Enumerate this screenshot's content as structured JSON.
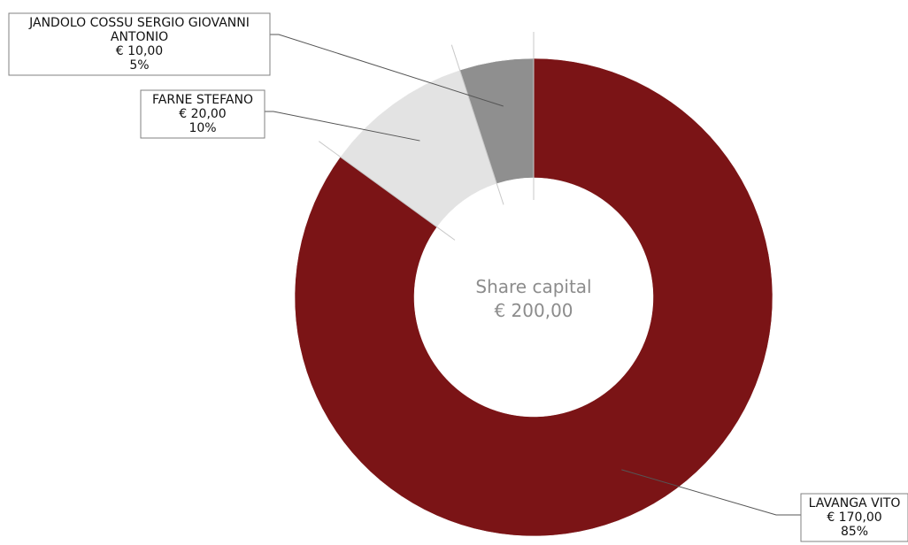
{
  "chart_data": {
    "type": "pie",
    "center_title": "Share capital",
    "center_value": "€ 200,00",
    "total": 200,
    "slices": [
      {
        "name_lines": [
          "LAVANGA VITO"
        ],
        "value": 170,
        "value_label": "€ 170,00",
        "percent_label": "85%",
        "color": "#7b1416"
      },
      {
        "name_lines": [
          "FARNE STEFANO"
        ],
        "value": 20,
        "value_label": "€ 20,00",
        "percent_label": "10%",
        "color": "#e3e3e3"
      },
      {
        "name_lines": [
          "JANDOLO COSSU SERGIO GIOVANNI",
          "ANTONIO"
        ],
        "value": 10,
        "value_label": "€ 10,00",
        "percent_label": "5%",
        "color": "#8f8f8f"
      }
    ]
  }
}
